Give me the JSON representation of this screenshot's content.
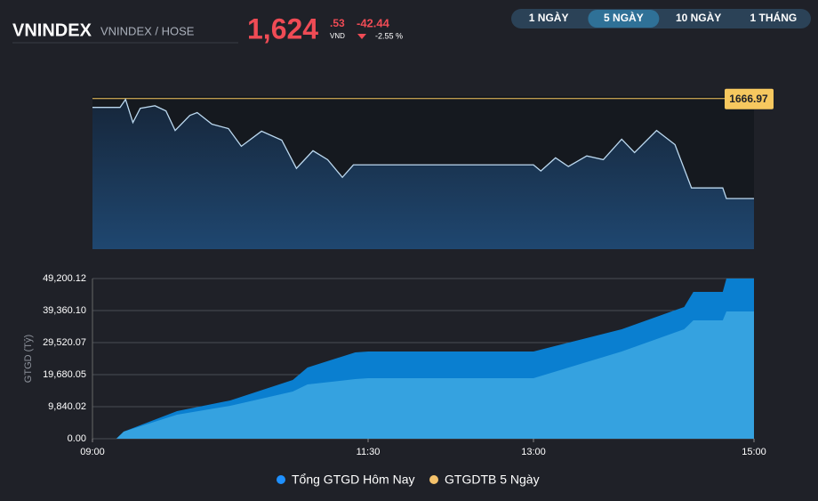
{
  "header": {
    "title": "VNINDEX",
    "subtitle": "VNINDEX / HOSE",
    "price_int": "1,624",
    "price_dec": ".53",
    "currency": "VND",
    "change": "-42.44",
    "change_pct": "-2.55 %"
  },
  "tabs": {
    "items": [
      "1 NGÀY",
      "5 NGÀY",
      "10 NGÀY",
      "1 THÁNG"
    ],
    "active": 1
  },
  "chart_data": [
    {
      "type": "line",
      "color": "#bcd9f0",
      "area": true,
      "x": [
        540,
        555,
        558,
        562,
        566,
        574,
        580,
        585,
        593,
        597,
        605,
        614,
        621,
        632,
        643,
        651,
        660,
        668,
        676,
        682,
        690,
        780,
        784,
        792,
        799,
        809,
        818,
        828,
        835,
        847,
        857,
        866,
        883,
        885,
        900
      ],
      "values": [
        1663.2,
        1663.2,
        1666.6,
        1656.8,
        1662.8,
        1663.9,
        1661.7,
        1653.4,
        1659.8,
        1661.0,
        1656.1,
        1654.2,
        1646.7,
        1653.1,
        1649.3,
        1637.3,
        1644.8,
        1641.0,
        1633.5,
        1638.8,
        1638.8,
        1638.8,
        1636.2,
        1641.8,
        1638.1,
        1642.6,
        1641.0,
        1649.7,
        1644.0,
        1653.4,
        1647.4,
        1629.0,
        1629.0,
        1624.5,
        1624.5
      ],
      "xlim": [
        540,
        900
      ],
      "ylim": [
        1603,
        1668
      ],
      "reference_line": {
        "value": 1666.97,
        "label": "1666.97",
        "color": "#f6c85f"
      }
    },
    {
      "type": "area",
      "y_label": "GTGD (Tỷ)",
      "xlim": [
        540,
        900
      ],
      "ylim": [
        0,
        49200.12
      ],
      "xticks": [
        {
          "value": 540,
          "label": "09:00"
        },
        {
          "value": 690,
          "label": "11:30"
        },
        {
          "value": 780,
          "label": "13:00"
        },
        {
          "value": 900,
          "label": "15:00"
        }
      ],
      "yticks": [
        {
          "value": 0,
          "label": "0.00"
        },
        {
          "value": 9840.02,
          "label": "9,840.02"
        },
        {
          "value": 19680.05,
          "label": "19,680.05"
        },
        {
          "value": 29520.07,
          "label": "29,520.07"
        },
        {
          "value": 39360.1,
          "label": "39,360.10"
        },
        {
          "value": 49200.12,
          "label": "49,200.12"
        }
      ],
      "grid": true,
      "series": [
        {
          "name": "Tổng GTGD Hôm Nay",
          "color": "#1e90ff",
          "fill": "#0a7fd0",
          "x": [
            540,
            553,
            557,
            586,
            615,
            649,
            657,
            683,
            690,
            780,
            828,
            862,
            867,
            883,
            885,
            900
          ],
          "values": [
            0,
            0,
            2186,
            8473,
            11753,
            18039,
            21866,
            26512,
            26786,
            26786,
            33619,
            40451,
            45098,
            45098,
            49200,
            49200
          ]
        },
        {
          "name": "GTGDTB 5 Ngày",
          "color": "#f5c26b",
          "fill": "#35a2e0",
          "x": [
            540,
            553,
            557,
            586,
            615,
            649,
            657,
            683,
            690,
            780,
            828,
            862,
            867,
            883,
            885,
            900
          ],
          "values": [
            0,
            0,
            2186,
            7380,
            10113,
            14487,
            16673,
            18313,
            18586,
            18586,
            26786,
            33619,
            36352,
            36352,
            39085,
            39085
          ]
        }
      ]
    }
  ]
}
